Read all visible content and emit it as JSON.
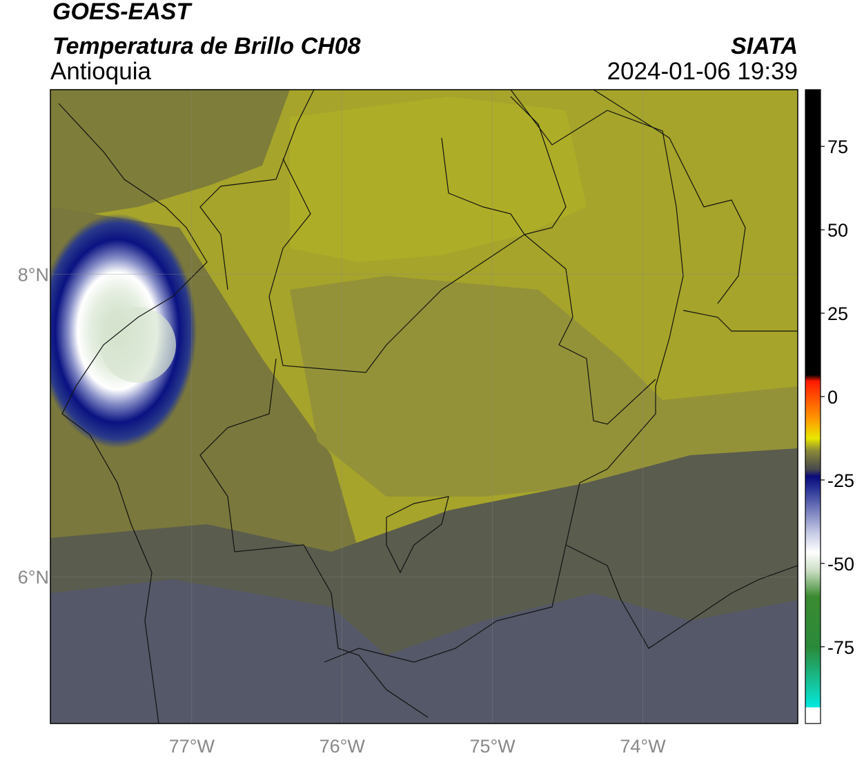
{
  "header": {
    "satellite": "GOES-EAST",
    "product": "Temperatura de Brillo CH08",
    "region": "Antioquia",
    "source": "SIATA",
    "datetime": "2024-01-06 19:39"
  },
  "map": {
    "xlim": [
      -77.94,
      -72.97
    ],
    "ylim": [
      5.03,
      9.22
    ],
    "xticks": [
      {
        "value": -77,
        "label": "77°W"
      },
      {
        "value": -76,
        "label": "76°W"
      },
      {
        "value": -75,
        "label": "75°W"
      },
      {
        "value": -74,
        "label": "74°W"
      }
    ],
    "yticks": [
      {
        "value": 6,
        "label": "6°N"
      },
      {
        "value": 8,
        "label": "8°N"
      }
    ],
    "grid": true
  },
  "colorbar": {
    "range": [
      -98,
      92
    ],
    "ticks": [
      -75,
      -50,
      -25,
      0,
      25,
      50,
      75
    ]
  }
}
